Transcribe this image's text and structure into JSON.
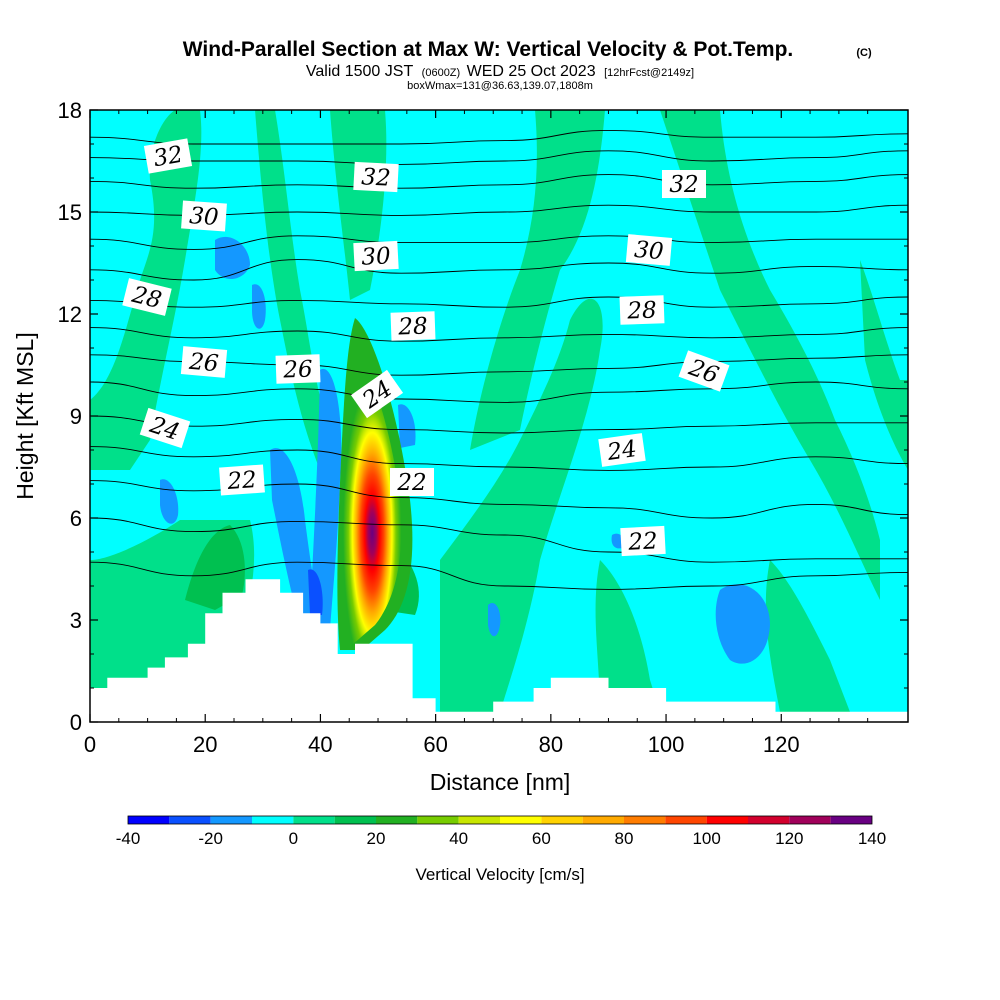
{
  "title": {
    "main": "Wind-Parallel Section at Max W: Vertical Velocity & Pot.Temp.",
    "copyright": "(C)",
    "valid_prefix": "Valid 1500 JST",
    "valid_utc": "(0600Z)",
    "valid_date": "WED 25 Oct 2023",
    "forecast": "[12hrFcst@2149z]",
    "box_info": "boxWmax=131@36.63,139.07,1808m"
  },
  "chart_data": {
    "type": "heatmap",
    "title": "Wind-Parallel Section at Max W: Vertical Velocity & Pot.Temp.",
    "xlabel": "Distance [nm]",
    "ylabel": "Height [Kft MSL]",
    "xlim": [
      0,
      142
    ],
    "ylim": [
      0,
      18
    ],
    "xticks": [
      0,
      20,
      40,
      60,
      80,
      100,
      120
    ],
    "yticks": [
      0,
      3,
      6,
      9,
      12,
      15,
      18
    ],
    "colorbar": {
      "label": "Vertical Velocity [cm/s]",
      "ticks": [
        -40,
        -20,
        0,
        20,
        40,
        60,
        80,
        100,
        120,
        140
      ],
      "levels": [
        -40,
        -30,
        -20,
        -10,
        0,
        10,
        20,
        30,
        40,
        50,
        60,
        70,
        80,
        90,
        100,
        110,
        120,
        130,
        140
      ],
      "colors": [
        "#0000ff",
        "#0a50ff",
        "#1498ff",
        "#00ffff",
        "#00e08a",
        "#00c050",
        "#22b022",
        "#77cc00",
        "#c8e600",
        "#ffff00",
        "#ffd200",
        "#ffaa00",
        "#ff7d00",
        "#ff4600",
        "#ff0000",
        "#d2002d",
        "#a0005a",
        "#690082"
      ]
    },
    "background_value": "0 to 10 cm/s",
    "max_w": {
      "value_cm_s": 131,
      "x_nm": 46,
      "height_kft": 6
    },
    "terrain_kft": {
      "x": [
        0,
        3,
        3,
        10,
        10,
        13,
        13,
        17,
        17,
        20,
        20,
        23,
        23,
        27,
        27,
        33,
        33,
        37,
        37,
        40,
        40,
        43,
        43,
        46,
        46,
        56,
        56,
        60,
        60,
        63,
        63,
        70,
        70,
        77,
        77,
        80,
        80,
        90,
        90,
        100,
        100,
        119,
        119,
        142
      ],
      "y": [
        1.0,
        1.0,
        1.3,
        1.3,
        1.6,
        1.6,
        1.9,
        1.9,
        2.3,
        2.3,
        3.2,
        3.2,
        3.8,
        3.8,
        4.2,
        4.2,
        3.8,
        3.8,
        3.2,
        3.2,
        2.9,
        2.9,
        2.0,
        2.0,
        2.3,
        2.3,
        0.7,
        0.7,
        0.3,
        0.3,
        0.3,
        0.3,
        0.6,
        0.6,
        1.0,
        1.0,
        1.3,
        1.3,
        1.0,
        1.0,
        0.6,
        0.6,
        0.3,
        0.3
      ]
    },
    "isentropes_label_c": [
      "32",
      "32",
      "32",
      "30",
      "30",
      "30",
      "28",
      "28",
      "28",
      "26",
      "26",
      "26",
      "24",
      "24",
      "24",
      "22",
      "22",
      "22"
    ],
    "isentrope_curves_kft": [
      [
        17.2,
        17.0,
        17.0,
        17.0,
        17.1,
        17.4,
        17.2,
        17.2,
        17.3
      ],
      [
        16.6,
        16.5,
        16.5,
        16.4,
        16.5,
        16.8,
        16.5,
        16.6,
        16.8
      ],
      [
        15.9,
        15.7,
        15.8,
        15.7,
        15.8,
        16.1,
        15.8,
        15.9,
        16.1
      ],
      [
        15.0,
        14.9,
        15.0,
        14.9,
        15.0,
        15.2,
        15.0,
        15.0,
        15.2
      ],
      [
        14.2,
        13.9,
        14.3,
        14.1,
        14.1,
        14.3,
        14.1,
        14.2,
        14.2
      ],
      [
        13.3,
        13.0,
        13.6,
        13.2,
        13.3,
        13.5,
        13.2,
        13.4,
        13.3
      ],
      [
        12.4,
        12.2,
        12.4,
        12.3,
        12.2,
        12.5,
        12.2,
        12.3,
        12.5
      ],
      [
        11.6,
        11.3,
        11.5,
        11.2,
        11.3,
        11.4,
        11.3,
        11.4,
        11.6
      ],
      [
        10.8,
        10.6,
        10.5,
        10.2,
        10.3,
        10.4,
        10.6,
        10.7,
        10.8
      ],
      [
        10.0,
        9.6,
        9.8,
        9.5,
        9.4,
        9.7,
        9.8,
        10.0,
        9.8
      ],
      [
        9.0,
        8.7,
        8.9,
        8.6,
        8.5,
        8.6,
        8.7,
        8.8,
        8.8
      ],
      [
        8.1,
        7.8,
        8.0,
        7.6,
        7.5,
        7.4,
        7.5,
        7.8,
        7.6
      ],
      [
        7.1,
        6.8,
        7.0,
        6.6,
        6.4,
        6.3,
        6.0,
        6.4,
        6.1
      ],
      [
        6.0,
        5.6,
        5.9,
        5.8,
        5.5,
        5.0,
        4.7,
        4.8,
        4.8
      ],
      [
        4.7,
        4.3,
        4.7,
        4.6,
        4.0,
        3.9,
        4.0,
        4.3,
        4.4
      ]
    ],
    "isentrope_x_nm": [
      0,
      18,
      36,
      54,
      72,
      90,
      108,
      126,
      142
    ]
  },
  "colors": {
    "background_field": "#00ffff",
    "frame": "#000000",
    "terrain": "#ffffff"
  }
}
